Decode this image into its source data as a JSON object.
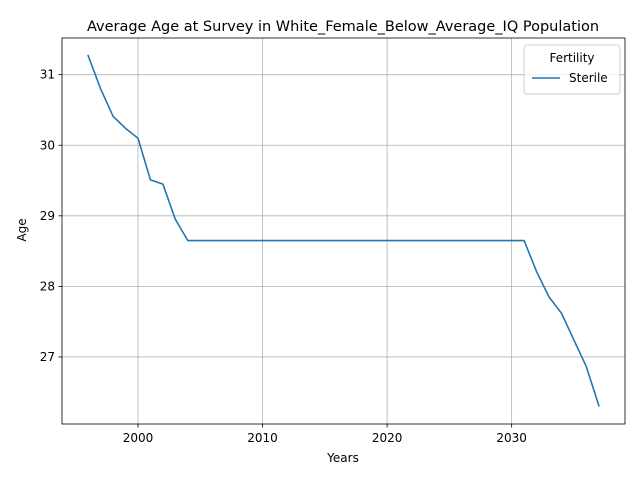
{
  "chart_data": {
    "type": "line",
    "title": "Average Age at Survey in White_Female_Below_Average_IQ Population",
    "xlabel": "Years",
    "ylabel": "Age",
    "xlim": [
      1993.9,
      2039.1
    ],
    "ylim": [
      26.05,
      31.52
    ],
    "xticks": [
      2000,
      2010,
      2020,
      2030
    ],
    "yticks": [
      27,
      28,
      29,
      30,
      31
    ],
    "grid": true,
    "legend": {
      "title": "Fertility",
      "placement": "top-right"
    },
    "series": [
      {
        "name": "Sterile",
        "color": "#1f77b4",
        "x": [
          1996,
          1997,
          1998,
          1999,
          2000,
          2001,
          2002,
          2003,
          2004,
          2005,
          2006,
          2007,
          2008,
          2009,
          2010,
          2011,
          2012,
          2013,
          2014,
          2015,
          2016,
          2017,
          2018,
          2019,
          2020,
          2021,
          2022,
          2023,
          2024,
          2025,
          2026,
          2027,
          2028,
          2029,
          2030,
          2031,
          2032,
          2033,
          2034,
          2035,
          2036,
          2037
        ],
        "y": [
          31.27,
          30.8,
          30.41,
          30.24,
          30.1,
          29.51,
          29.45,
          28.95,
          28.65,
          28.65,
          28.65,
          28.65,
          28.65,
          28.65,
          28.65,
          28.65,
          28.65,
          28.65,
          28.65,
          28.65,
          28.65,
          28.65,
          28.65,
          28.65,
          28.65,
          28.65,
          28.65,
          28.65,
          28.65,
          28.65,
          28.65,
          28.65,
          28.65,
          28.65,
          28.65,
          28.65,
          28.21,
          27.85,
          27.62,
          27.24,
          26.86,
          26.31
        ]
      }
    ]
  }
}
